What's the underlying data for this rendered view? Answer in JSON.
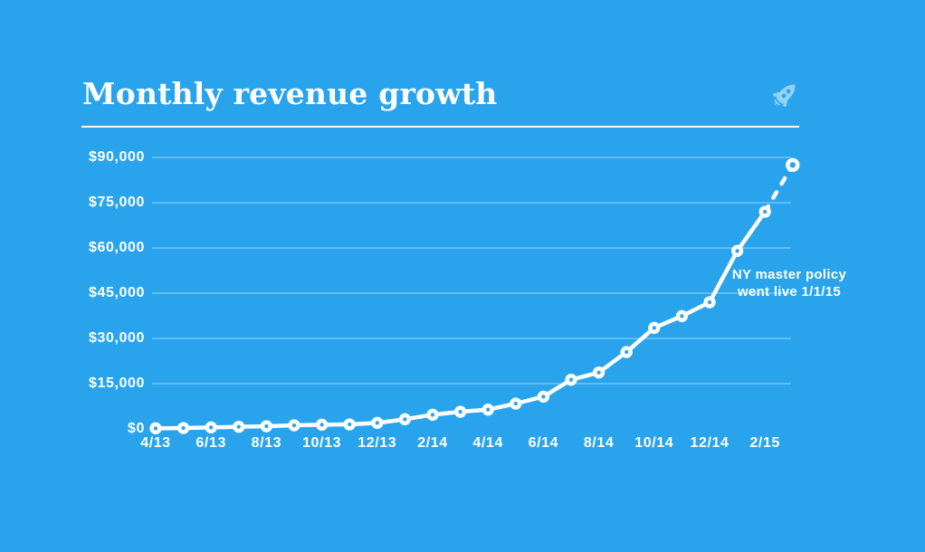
{
  "header": {
    "title": "Monthly revenue growth",
    "icon": "rocket-icon"
  },
  "colors": {
    "background": "#29A4EC",
    "line": "#FFFFFF",
    "text": "#FFFFFF",
    "gridline": "rgba(255,255,255,0.42)",
    "rocket": "rgba(255,255,255,0.5)"
  },
  "chart_data": {
    "type": "line",
    "title": "Monthly revenue growth",
    "xlabel": "",
    "ylabel": "",
    "grid": "horizontal",
    "legend": "none",
    "x": [
      "4/13",
      "5/13",
      "6/13",
      "7/13",
      "8/13",
      "9/13",
      "10/13",
      "11/13",
      "12/13",
      "1/14",
      "2/14",
      "3/14",
      "4/14",
      "5/14",
      "6/14",
      "7/14",
      "8/14",
      "9/14",
      "10/14",
      "11/14",
      "12/14",
      "1/15",
      "2/15",
      "3/15"
    ],
    "x_tick_labels": [
      "4/13",
      "6/13",
      "8/13",
      "10/13",
      "12/13",
      "2/14",
      "4/14",
      "6/14",
      "8/14",
      "10/14",
      "12/14",
      "2/15"
    ],
    "y_ticks": [
      0,
      15000,
      30000,
      45000,
      60000,
      75000,
      90000
    ],
    "y_tick_labels": [
      "$0",
      "$15,000",
      "$30,000",
      "$45,000",
      "$60,000",
      "$75,000",
      "$90,000"
    ],
    "ylim": [
      0,
      97500
    ],
    "series": [
      {
        "name": "Monthly revenue",
        "values": [
          200,
          300,
          500,
          700,
          900,
          1200,
          1400,
          1500,
          2000,
          3200,
          4700,
          5700,
          6400,
          8400,
          10700,
          16300,
          18700,
          25500,
          33500,
          37400,
          42000,
          59000,
          72000,
          87500
        ],
        "last_segment_projected": true
      }
    ],
    "annotation": {
      "text_lines": [
        "NY master policy",
        "went live 1/1/15"
      ]
    }
  }
}
